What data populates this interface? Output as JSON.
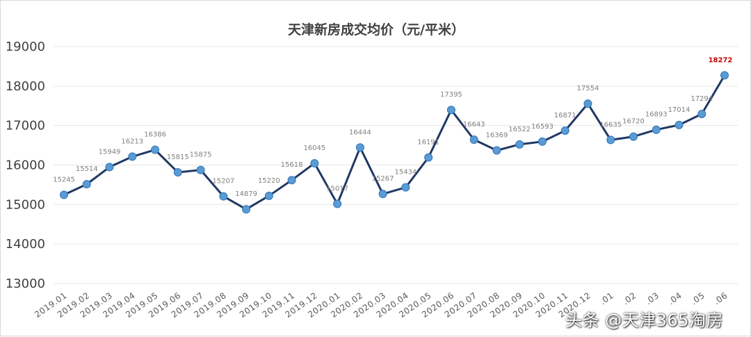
{
  "chart_data": {
    "type": "line",
    "title": "天津新房成交均价（元/平米）",
    "xlabel": "",
    "ylabel": "",
    "ylim": [
      13000,
      19000
    ],
    "yticks": [
      13000,
      14000,
      15000,
      16000,
      17000,
      18000,
      19000
    ],
    "grid": true,
    "legend": "none",
    "categories": [
      "2019.01",
      "2019.02",
      "2019.03",
      "2019.04",
      "2019.05",
      "2019.06",
      "2019.07",
      "2019.08",
      "2019.09",
      "2019.10",
      "2019.11",
      "2019.12",
      "2020.01",
      "2020.02",
      "2020.03",
      "2020.04",
      "2020.05",
      "2020.06",
      "2020.07",
      "2020.08",
      "2020.09",
      "2020.10",
      "2020.11",
      "2020.12",
      "2021.01",
      "2021.02",
      "2021.03",
      "2021.04",
      "2021.05",
      "2021.06"
    ],
    "tick_labels": [
      "2019.01",
      "2019.02",
      "2019.03",
      "2019.04",
      "2019.05",
      "2019.06",
      "2019.07",
      "2019.08",
      "2019.09",
      "2019.10",
      "2019.11",
      "2019.12",
      "2020.01",
      "2020.02",
      "2020.03",
      "2020.04",
      "2020.05",
      "2020.06",
      "2020.07",
      "2020.08",
      "2020.09",
      "2020.10",
      "2020.11",
      "2020.12",
      ".01",
      ".02",
      ".03",
      ".04",
      ".05",
      ".06"
    ],
    "values": [
      15245,
      15514,
      15949,
      16213,
      16386,
      15815,
      15875,
      15207,
      14879,
      15220,
      15618,
      16045,
      15017,
      16444,
      15267,
      15434,
      16191,
      17395,
      16643,
      16369,
      16522,
      16593,
      16871,
      17554,
      16635,
      16720,
      16893,
      17014,
      17294,
      18272
    ],
    "data_labels": [
      "15245",
      "15514",
      "15949",
      "16213",
      "16386",
      "15815",
      "15875",
      "15207",
      "14879",
      "15220",
      "15618",
      "16045",
      "15017",
      "16444",
      "15267",
      "15434",
      "16191",
      "17395",
      "16643",
      "16369",
      "16522",
      "16593",
      "16871",
      "17554",
      "16635",
      "16720",
      "16893",
      "17014",
      "17294",
      "18272"
    ],
    "highlight_index": 29,
    "colors": {
      "line": "#203864",
      "marker_fill": "#5b9bd5",
      "marker_stroke": "#2e75b6",
      "highlight_label": "#c00000",
      "grid": "#e6e6e6"
    }
  },
  "watermark": "头条 @天津365淘房"
}
